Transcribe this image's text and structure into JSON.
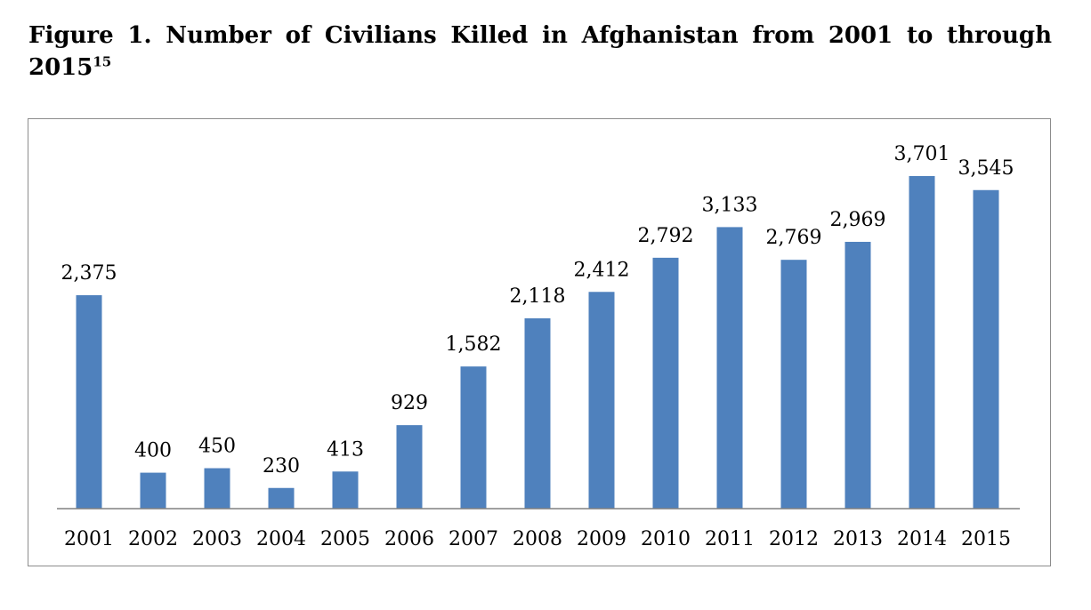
{
  "figure": {
    "title_main": "Figure 1. Number of Civilians Killed in Afghanistan from 2001 to through 2015",
    "title_sup": "15"
  },
  "chart_data": {
    "type": "bar",
    "title": "",
    "xlabel": "",
    "ylabel": "",
    "categories": [
      "2001",
      "2002",
      "2003",
      "2004",
      "2005",
      "2006",
      "2007",
      "2008",
      "2009",
      "2010",
      "2011",
      "2012",
      "2013",
      "2014",
      "2015"
    ],
    "values": [
      2375,
      400,
      450,
      230,
      413,
      929,
      1582,
      2118,
      2412,
      2792,
      3133,
      2769,
      2969,
      3701,
      3545
    ],
    "value_labels": [
      "2,375",
      "400",
      "450",
      "230",
      "413",
      "929",
      "1,582",
      "2,118",
      "2,412",
      "2,792",
      "3,133",
      "2,769",
      "2,969",
      "3,701",
      "3,545"
    ],
    "ylim": [
      0,
      3701
    ],
    "grid": false,
    "legend": "none",
    "bar_color": "#4f81bd"
  }
}
